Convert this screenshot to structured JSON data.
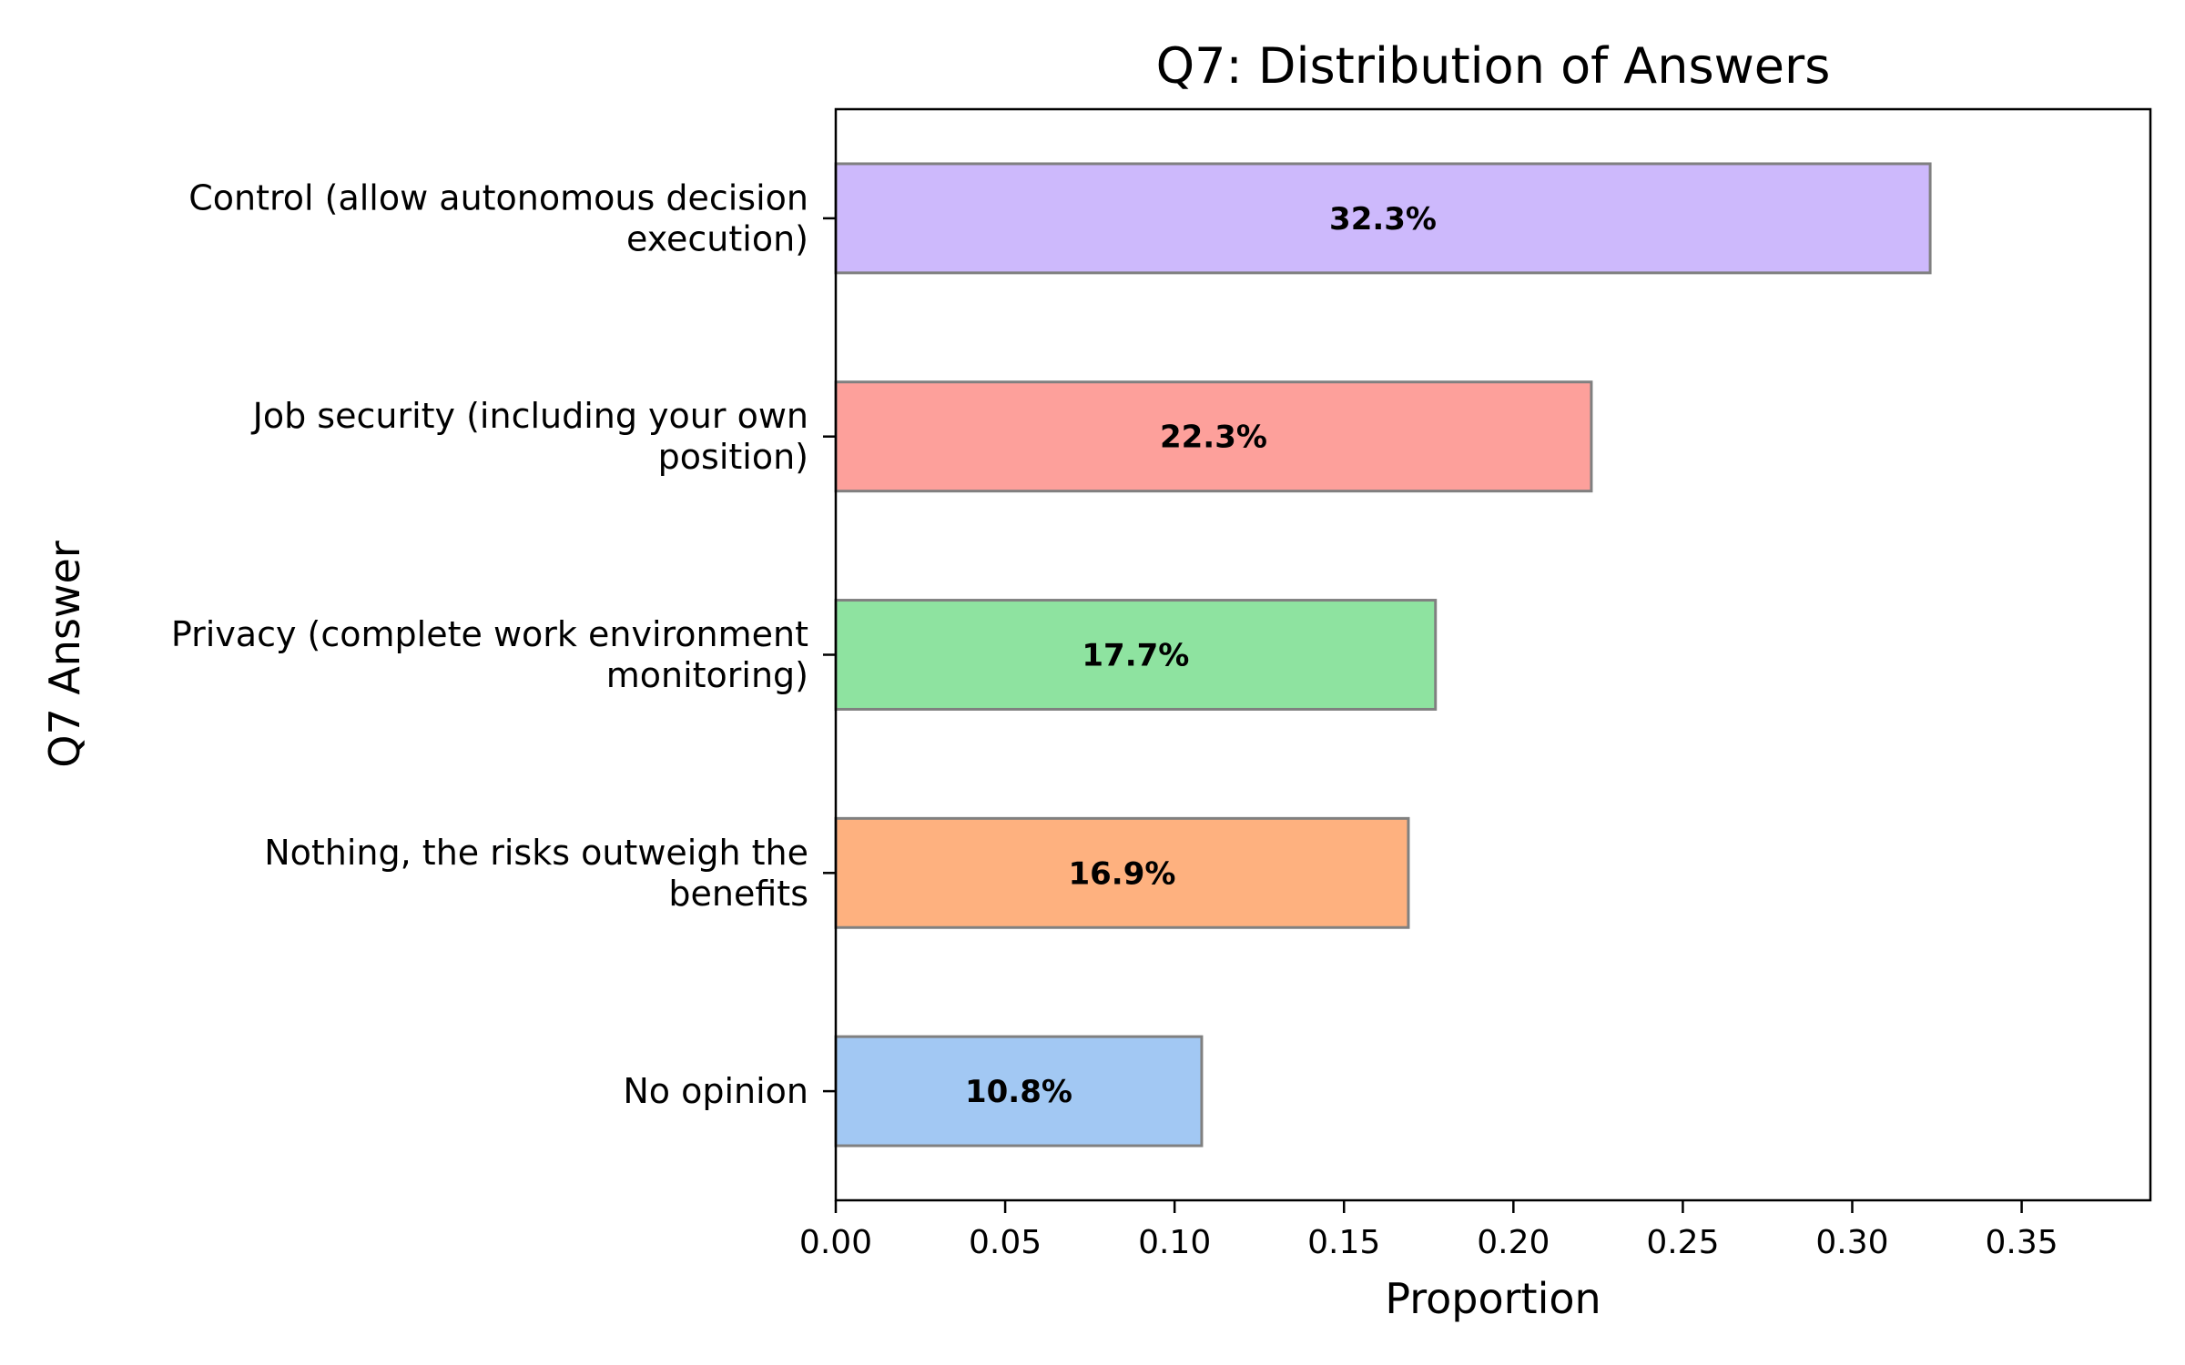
{
  "chart_data": {
    "type": "bar",
    "orientation": "horizontal",
    "title": "Q7: Distribution of Answers",
    "xlabel": "Proportion",
    "ylabel": "Q7 Answer",
    "categories": [
      [
        "Control (allow autonomous decision",
        "execution)"
      ],
      [
        "Job security (including your own",
        "position)"
      ],
      [
        "Privacy (complete work environment",
        "monitoring)"
      ],
      [
        "Nothing, the risks outweigh the",
        "benefits"
      ],
      [
        "No opinion"
      ]
    ],
    "values": [
      0.323,
      0.223,
      0.177,
      0.169,
      0.108
    ],
    "value_labels": [
      "32.3%",
      "22.3%",
      "17.7%",
      "16.9%",
      "10.8%"
    ],
    "colors": [
      "#cdb9fc",
      "#fda09b",
      "#8ee3a0",
      "#feb17f",
      "#a2c8f3"
    ],
    "bar_edge_color": "#808080",
    "xlim": [
      0,
      0.388
    ],
    "xticks": [
      0.0,
      0.05,
      0.1,
      0.15,
      0.2,
      0.25,
      0.3,
      0.35
    ],
    "xtick_labels": [
      "0.00",
      "0.05",
      "0.10",
      "0.15",
      "0.20",
      "0.25",
      "0.30",
      "0.35"
    ],
    "grid": false,
    "legend": "none"
  }
}
